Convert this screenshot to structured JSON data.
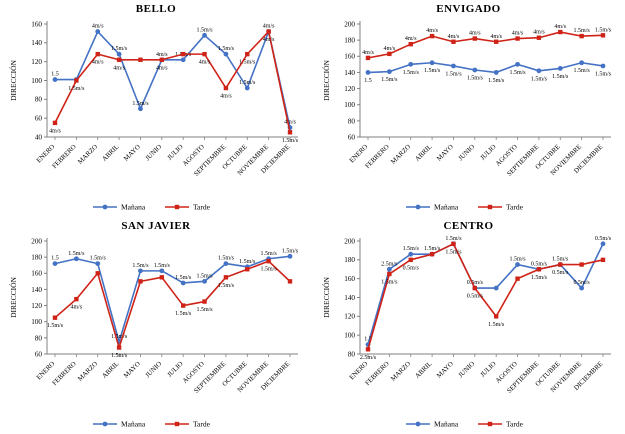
{
  "colors": {
    "manana": "#4472C4",
    "tarde": "#D02318",
    "axis": "#808080",
    "label_text": "#000000"
  },
  "months": [
    "ENERO",
    "FEBRERO",
    "MARZO",
    "ABRIL",
    "MAYO",
    "JUNIO",
    "JULIO",
    "AGOSTO",
    "SEPTIEMBRE",
    "OCTUBRE",
    "NOVIEMBRE",
    "DICIEMBRE"
  ],
  "chart_data": [
    {
      "type": "line",
      "title": "BELLO",
      "ylabel": "DIRECCIÓN",
      "ylim": [
        40,
        160
      ],
      "ytick_step": 20,
      "grid": false,
      "legend_position": "bottom",
      "categories": [
        "ENERO",
        "FEBRERO",
        "MARZO",
        "ABRIL",
        "MAYO",
        "JUNIO",
        "JULIO",
        "AGOSTO",
        "SEPTIEMBRE",
        "OCTUBRE",
        "NOVIEMBRE",
        "DICIEMBRE"
      ],
      "series": [
        {
          "name": "Mañana",
          "color": "#4472C4",
          "marker": "circle",
          "label_position": "above",
          "values": [
            101,
            101,
            152,
            128,
            70,
            122,
            122,
            148,
            128,
            92,
            152,
            50
          ],
          "point_labels": [
            "1.5",
            "",
            "4m/s",
            "1.5m/s",
            "1.5m/s",
            "4m/s",
            "1.5m/s",
            "1.5m/s",
            "1.5m/s",
            "1.5m/s",
            "4m/s",
            "4m/s"
          ]
        },
        {
          "name": "Tarde",
          "color": "#D02318",
          "marker": "square",
          "label_position": "below",
          "values": [
            55,
            100,
            128,
            122,
            122,
            122,
            128,
            128,
            92,
            128,
            152,
            45
          ],
          "point_labels": [
            "4m/s",
            "1.5m/s",
            "4m/s",
            "4m/s",
            "",
            "4m/s",
            "",
            "4m/s",
            "4m/s",
            "1.5m/s",
            "4m/s",
            "1.5m/s"
          ]
        }
      ]
    },
    {
      "type": "line",
      "title": "ENVIGADO",
      "ylabel": "DIRECCIÓN",
      "ylim": [
        60,
        200
      ],
      "ytick_step": 20,
      "grid": false,
      "legend_position": "bottom",
      "categories": [
        "ENERO",
        "FEBRERO",
        "MARZO",
        "ABRIL",
        "MAYO",
        "JUNIO",
        "JULIO",
        "AGOSTO",
        "SEPTIEMBRE",
        "OCTUBRE",
        "NOVIEMBRE",
        "DICIEMBRE"
      ],
      "series": [
        {
          "name": "Mañana",
          "color": "#4472C4",
          "marker": "circle",
          "label_position": "below",
          "values": [
            140,
            141,
            150,
            152,
            148,
            143,
            140,
            150,
            142,
            145,
            152,
            148
          ],
          "point_labels": [
            "1.5",
            "1.5m/s",
            "1.5m/s",
            "1.5m/s",
            "1.5m/s",
            "1.5m/s",
            "1.5m/s",
            "1.5m/s",
            "1.5m/s",
            "1.5m/s",
            "1.5m/s",
            "1.5m/s"
          ]
        },
        {
          "name": "Tarde",
          "color": "#D02318",
          "marker": "square",
          "label_position": "above",
          "values": [
            158,
            163,
            175,
            185,
            178,
            182,
            178,
            182,
            183,
            190,
            185,
            186
          ],
          "point_labels": [
            "4m/s",
            "4m/s",
            "4m/s",
            "4m/s",
            "4m/s",
            "4m/s",
            "4m/s",
            "4m/s",
            "4m/s",
            "4m/s",
            "1.5m/s",
            "1.5m/s"
          ]
        }
      ]
    },
    {
      "type": "line",
      "title": "SAN JAVIER",
      "ylabel": "DIRECCIÓN",
      "ylim": [
        60,
        200
      ],
      "ytick_step": 20,
      "grid": false,
      "legend_position": "bottom",
      "categories": [
        "ENERO",
        "FEBRERO",
        "MARZO",
        "ABRIL",
        "MAYO",
        "JUNIO",
        "JULIO",
        "AGOSTO",
        "SEPTIEMBRE",
        "OCTUBRE",
        "NOVIEMBRE",
        "DICIEMBRE"
      ],
      "series": [
        {
          "name": "Mañana",
          "color": "#4472C4",
          "marker": "circle",
          "label_position": "above",
          "values": [
            172,
            178,
            172,
            75,
            163,
            163,
            148,
            150,
            172,
            168,
            178,
            181
          ],
          "point_labels": [
            "1.5",
            "1.5m/s",
            "1.5m/s",
            "1.5m/s",
            "1.5m/s",
            "1.5m/s",
            "1.5m/s",
            "1.5m/s",
            "1.5m/s",
            "1.5m/s",
            "1.5m/s",
            "1.5m/s"
          ]
        },
        {
          "name": "Tarde",
          "color": "#D02318",
          "marker": "square",
          "label_position": "below",
          "values": [
            105,
            128,
            160,
            68,
            150,
            155,
            120,
            125,
            155,
            165,
            175,
            150
          ],
          "point_labels": [
            "1.5m/s",
            "4m/s",
            "",
            "1.5m/s",
            "",
            "",
            "1.5m/s",
            "1.5m/s",
            "1.5m/s",
            "",
            "1.5m/s",
            ""
          ]
        }
      ]
    },
    {
      "type": "line",
      "title": "CENTRO",
      "ylabel": "DIRECCIÓN",
      "ylim": [
        80,
        200
      ],
      "ytick_step": 20,
      "grid": false,
      "legend_position": "bottom",
      "categories": [
        "ENERO",
        "FEBRERO",
        "MARZO",
        "ABRIL",
        "MAYO",
        "JUNIO",
        "JULIO",
        "AGOSTO",
        "SEPTIEMBRE",
        "OCTUBRE",
        "NOVIEMBRE",
        "DICIEMBRE"
      ],
      "series": [
        {
          "name": "Mañana",
          "color": "#4472C4",
          "marker": "circle",
          "label_position": "above",
          "values": [
            90,
            170,
            186,
            186,
            197,
            150,
            150,
            175,
            170,
            175,
            150,
            197
          ],
          "point_labels": [
            "1.5",
            "2.5m/s",
            "1.5m/s",
            "1.5m/s",
            "1.5m/s",
            "0.5m/s",
            "",
            "1.5m/s",
            "0.5m/s",
            "1.5m/s",
            "0.5m/s",
            "0.5m/s"
          ]
        },
        {
          "name": "Tarde",
          "color": "#D02318",
          "marker": "square",
          "label_position": "below",
          "values": [
            85,
            165,
            180,
            186,
            197,
            150,
            120,
            160,
            170,
            175,
            175,
            180
          ],
          "point_labels": [
            "2.5m/s",
            "1.5m/s",
            "0.5m/s",
            "",
            "1.5m/s",
            "0.5m/s",
            "1.5m/s",
            "",
            "1.5m/s",
            "0.5m/s",
            "",
            ""
          ]
        }
      ]
    }
  ]
}
